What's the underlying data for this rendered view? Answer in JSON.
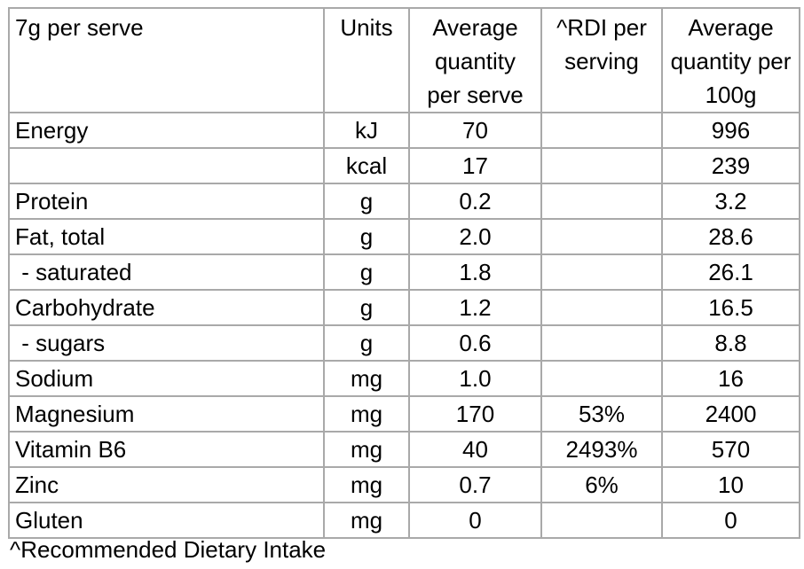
{
  "table": {
    "headers": {
      "name": "7g per serve",
      "units": "Units",
      "avg_serve": "Average quantity per serve",
      "rdi": "^RDI per serving",
      "avg_100g": "Average quantity per 100g"
    },
    "rows": [
      {
        "name": "Energy",
        "unit": "kJ",
        "per_serve": "70",
        "rdi": "",
        "per_100g": "996"
      },
      {
        "name": "",
        "unit": "kcal",
        "per_serve": "17",
        "rdi": "",
        "per_100g": "239"
      },
      {
        "name": "Protein",
        "unit": "g",
        "per_serve": "0.2",
        "rdi": "",
        "per_100g": "3.2"
      },
      {
        "name": "Fat, total",
        "unit": "g",
        "per_serve": "2.0",
        "rdi": "",
        "per_100g": "28.6"
      },
      {
        "name": " - saturated",
        "unit": "g",
        "per_serve": "1.8",
        "rdi": "",
        "per_100g": "26.1"
      },
      {
        "name": "Carbohydrate",
        "unit": "g",
        "per_serve": "1.2",
        "rdi": "",
        "per_100g": "16.5"
      },
      {
        "name": " - sugars",
        "unit": "g",
        "per_serve": "0.6",
        "rdi": "",
        "per_100g": "8.8"
      },
      {
        "name": "Sodium",
        "unit": "mg",
        "per_serve": "1.0",
        "rdi": "",
        "per_100g": "16"
      },
      {
        "name": "Magnesium",
        "unit": "mg",
        "per_serve": "170",
        "rdi": "53%",
        "per_100g": "2400"
      },
      {
        "name": "Vitamin B6",
        "unit": "mg",
        "per_serve": "40",
        "rdi": "2493%",
        "per_100g": "570"
      },
      {
        "name": "Zinc",
        "unit": "mg",
        "per_serve": "0.7",
        "rdi": "6%",
        "per_100g": "10"
      },
      {
        "name": "Gluten",
        "unit": "mg",
        "per_serve": "0",
        "rdi": "",
        "per_100g": "0"
      }
    ]
  },
  "footnote": "^Recommended Dietary Intake",
  "colors": {
    "border": "#a9a9a9",
    "text": "#000000",
    "background": "#ffffff"
  }
}
